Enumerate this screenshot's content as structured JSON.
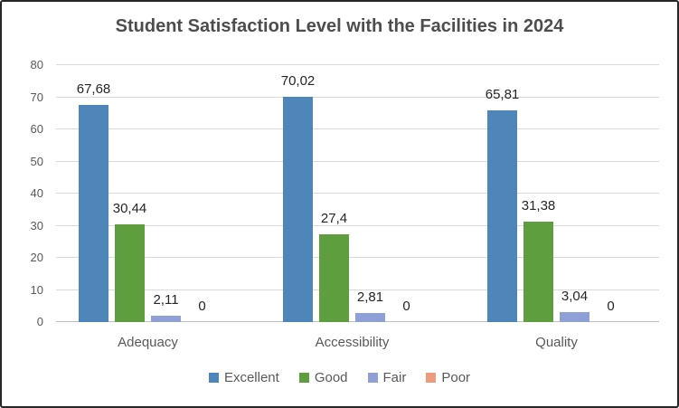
{
  "title": "Student Satisfaction Level with the Facilities in 2024",
  "chart_data": {
    "type": "bar",
    "title": "Student Satisfaction Level with the Facilities in 2024",
    "categories": [
      "Adequacy",
      "Accessibility",
      "Quality"
    ],
    "series": [
      {
        "name": "Excellent",
        "color": "#4F86BA",
        "values": [
          67.68,
          70.02,
          65.81
        ],
        "labels": [
          "67,68",
          "70,02",
          "65,81"
        ]
      },
      {
        "name": "Good",
        "color": "#5F9E3F",
        "values": [
          30.44,
          27.4,
          31.38
        ],
        "labels": [
          "30,44",
          "27,4",
          "31,38"
        ]
      },
      {
        "name": "Fair",
        "color": "#8EA0D6",
        "values": [
          2.11,
          2.81,
          3.04
        ],
        "labels": [
          "2,11",
          "2,81",
          "3,04"
        ]
      },
      {
        "name": "Poor",
        "color": "#EC9B7D",
        "values": [
          0,
          0,
          0
        ],
        "labels": [
          "0",
          "0",
          "0"
        ]
      }
    ],
    "xlabel": "",
    "ylabel": "",
    "ylim": [
      0,
      80
    ],
    "yticks": [
      0,
      10,
      20,
      30,
      40,
      50,
      60,
      70,
      80
    ],
    "grid": true,
    "legend_position": "bottom",
    "decimal_separator": ","
  },
  "colors": {
    "title_text": "#4d4d4d",
    "axis_text": "#595959",
    "data_label_text": "#262626",
    "gridline": "#d9d9d9",
    "axis_line": "#bfbfbf",
    "frame_border": "#262626",
    "background": "#ffffff"
  }
}
